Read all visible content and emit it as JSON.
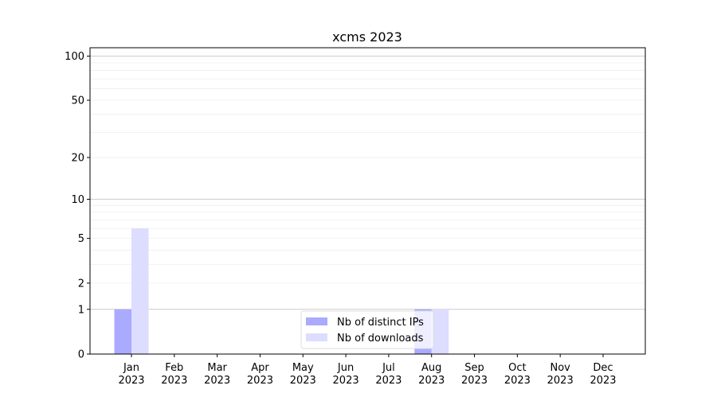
{
  "chart_data": {
    "type": "bar",
    "title": "xcms 2023",
    "xlabel": "",
    "ylabel": "",
    "y_scale": "log(1+y)",
    "ylim": [
      0,
      114
    ],
    "yticks": [
      0,
      1,
      2,
      5,
      10,
      20,
      50,
      100
    ],
    "grid": true,
    "legend_position": "lower center",
    "categories": [
      "Jan\n2023",
      "Feb\n2023",
      "Mar\n2023",
      "Apr\n2023",
      "May\n2023",
      "Jun\n2023",
      "Jul\n2023",
      "Aug\n2023",
      "Sep\n2023",
      "Oct\n2023",
      "Nov\n2023",
      "Dec\n2023"
    ],
    "series": [
      {
        "name": "Nb of distinct IPs",
        "color": "#aaaaff",
        "values": [
          1,
          0,
          0,
          0,
          0,
          0,
          0,
          1,
          0,
          0,
          0,
          0
        ]
      },
      {
        "name": "Nb of downloads",
        "color": "#ddddff",
        "values": [
          6,
          0,
          0,
          0,
          0,
          0,
          0,
          1,
          0,
          0,
          0,
          0
        ]
      }
    ]
  }
}
